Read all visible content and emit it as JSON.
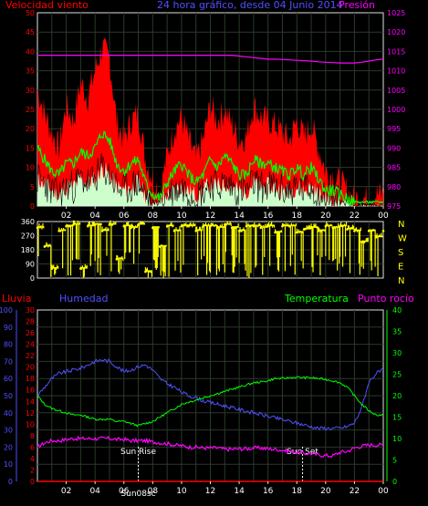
{
  "header": {
    "left_label": "Velocidad viento",
    "center_label": "24 hora gráfico, desde 04 Junio 2014",
    "right_label": "Presión"
  },
  "colors": {
    "red": "#ff0000",
    "blue": "#5050ff",
    "magenta": "#ff00ff",
    "green": "#00ff00",
    "yellow": "#ffff00",
    "white": "#ffffff",
    "grid": "#2a3a2a",
    "frame": "#e0e0e0"
  },
  "chart_data": [
    {
      "type": "area",
      "name": "wind",
      "x_ticks": [
        "02",
        "04",
        "06",
        "08",
        "10",
        "12",
        "14",
        "16",
        "18",
        "20",
        "22",
        "00"
      ],
      "y_left": {
        "label": "Velocidad viento",
        "ticks": [
          0,
          5,
          10,
          15,
          20,
          25,
          30,
          35,
          40,
          45,
          50
        ],
        "range": [
          0,
          50
        ]
      },
      "y_right": {
        "label": "Presión",
        "ticks": [
          975,
          980,
          985,
          990,
          995,
          1000,
          1005,
          1010,
          1015,
          1020,
          1025
        ],
        "range": [
          975,
          1025
        ]
      },
      "x_hours": [
        0,
        0.5,
        1,
        1.5,
        2,
        2.5,
        3,
        3.5,
        4,
        4.5,
        5,
        5.5,
        6,
        6.5,
        7,
        7.5,
        8,
        8.5,
        9,
        9.5,
        10,
        10.5,
        11,
        11.5,
        12,
        12.5,
        13,
        13.5,
        14,
        14.5,
        15,
        15.5,
        16,
        16.5,
        17,
        17.5,
        18,
        18.5,
        19,
        19.5,
        20,
        20.5,
        21,
        21.5,
        22,
        22.5,
        23,
        23.5,
        24
      ],
      "gust": [
        30,
        24,
        19,
        15,
        26,
        22,
        32,
        28,
        35,
        41,
        38,
        22,
        17,
        22,
        24,
        12,
        7,
        4,
        13,
        20,
        23,
        17,
        12,
        17,
        26,
        22,
        25,
        21,
        17,
        18,
        26,
        23,
        22,
        21,
        19,
        17,
        22,
        18,
        21,
        15,
        9,
        8,
        6,
        4,
        2,
        2,
        2,
        3,
        3
      ],
      "average": [
        15,
        12,
        9,
        8,
        11,
        11,
        14,
        13,
        15,
        19,
        17,
        11,
        9,
        11,
        12,
        6,
        3,
        2,
        6,
        9,
        11,
        8,
        6,
        8,
        12,
        10,
        13,
        11,
        8,
        8,
        12,
        11,
        11,
        10,
        9,
        8,
        10,
        8,
        10,
        7,
        4,
        4,
        3,
        2,
        1,
        1,
        1,
        1,
        1
      ],
      "lowest": [
        7,
        6,
        4,
        3,
        5,
        5,
        7,
        6,
        7,
        10,
        8,
        5,
        4,
        5,
        6,
        3,
        1,
        1,
        3,
        4,
        5,
        4,
        3,
        4,
        6,
        5,
        6,
        5,
        4,
        4,
        6,
        5,
        5,
        5,
        4,
        4,
        5,
        4,
        5,
        3,
        2,
        2,
        1,
        1,
        0,
        0,
        0,
        0,
        0
      ],
      "pressure": [
        1014,
        1014,
        1014,
        1014,
        1014,
        1014,
        1014,
        1014,
        1014,
        1014,
        1014,
        1014,
        1014,
        1014,
        1014,
        1014,
        1014,
        1014,
        1014,
        1014,
        1014,
        1014,
        1014,
        1014,
        1014,
        1014,
        1014,
        1014,
        1013.8,
        1013.6,
        1013.4,
        1013.2,
        1013,
        1013,
        1012.9,
        1012.8,
        1012.7,
        1012.6,
        1012.5,
        1012.3,
        1012.2,
        1012.1,
        1012,
        1012,
        1012,
        1012.2,
        1012.5,
        1012.8,
        1013
      ]
    },
    {
      "type": "scatter",
      "name": "wind_direction",
      "y_left": {
        "ticks": [
          0,
          90,
          180,
          270,
          360
        ],
        "range": [
          0,
          360
        ]
      },
      "y_right_labels": [
        "N",
        "W",
        "S",
        "E",
        "N"
      ],
      "x_hours": [
        0,
        0.5,
        1,
        1.5,
        2,
        2.5,
        3,
        3.5,
        4,
        4.5,
        5,
        5.5,
        6,
        6.5,
        7,
        7.5,
        8,
        8.5,
        9,
        9.5,
        10,
        10.5,
        11,
        11.5,
        12,
        12.5,
        13,
        13.5,
        14,
        14.5,
        15,
        15.5,
        16,
        16.5,
        17,
        17.5,
        18,
        18.5,
        19,
        19.5,
        20,
        20.5,
        21,
        21.5,
        22,
        22.5,
        23,
        23.5,
        24
      ],
      "direction": [
        320,
        200,
        60,
        300,
        330,
        340,
        60,
        330,
        340,
        300,
        340,
        120,
        330,
        320,
        340,
        40,
        320,
        200,
        330,
        300,
        330,
        330,
        300,
        330,
        330,
        320,
        340,
        320,
        300,
        330,
        330,
        320,
        330,
        290,
        330,
        330,
        290,
        310,
        320,
        300,
        330,
        320,
        330,
        310,
        300,
        230,
        300,
        260,
        300
      ]
    },
    {
      "type": "line",
      "name": "temp_humidity",
      "x_ticks": [
        "02",
        "04",
        "06",
        "08",
        "10",
        "12",
        "14",
        "16",
        "18",
        "20",
        "22",
        "00"
      ],
      "annotations": [
        "Sun Rise",
        "Sun Set",
        "Sun08sc"
      ],
      "sunrise_hour": 7.0,
      "sunset_hour": 18.4,
      "y_left1": {
        "label": "Lluvia",
        "ticks": [
          0,
          2,
          4,
          6,
          8,
          10,
          12,
          14,
          16,
          18,
          20,
          22,
          24,
          26,
          28,
          30
        ],
        "range": [
          0,
          30
        ]
      },
      "y_left2": {
        "label": "Humedad",
        "ticks": [
          0,
          10,
          20,
          30,
          40,
          50,
          60,
          70,
          80,
          90,
          100
        ],
        "range": [
          0,
          100
        ]
      },
      "y_right1": {
        "label": "Temperatura",
        "ticks": [
          0,
          5,
          10,
          15,
          20,
          25,
          30,
          35,
          40
        ],
        "range": [
          0,
          40
        ]
      },
      "y_right2": {
        "label": "Punto rocío"
      },
      "x_hours": [
        0,
        0.5,
        1,
        1.5,
        2,
        2.5,
        3,
        3.5,
        4,
        4.5,
        5,
        5.5,
        6,
        6.5,
        7,
        7.5,
        8,
        8.5,
        9,
        9.5,
        10,
        10.5,
        11,
        11.5,
        12,
        12.5,
        13,
        13.5,
        14,
        14.5,
        15,
        15.5,
        16,
        16.5,
        17,
        17.5,
        18,
        18.5,
        19,
        19.5,
        20,
        20.5,
        21,
        21.5,
        22,
        22.5,
        23,
        23.5,
        24
      ],
      "humidity": [
        50,
        55,
        60,
        63,
        64,
        65,
        66,
        68,
        70,
        71,
        70,
        67,
        64,
        65,
        67,
        68,
        65,
        60,
        57,
        55,
        52,
        50,
        49,
        47,
        46,
        45,
        44,
        43,
        42,
        41,
        40,
        39,
        38,
        37,
        36,
        35,
        34,
        33,
        32,
        31,
        31,
        31,
        31,
        32,
        34,
        43,
        58,
        63,
        65
      ],
      "temperature": [
        20,
        18,
        17,
        16.5,
        16,
        15.5,
        15.5,
        15,
        14.5,
        14.5,
        14.5,
        14,
        14,
        13.5,
        13,
        13.5,
        14,
        15,
        16,
        17,
        18,
        18.5,
        19,
        19.5,
        20,
        20.5,
        21,
        21.5,
        22,
        22.5,
        23,
        23.2,
        23.5,
        24,
        24,
        24.2,
        24.3,
        24.2,
        24.2,
        24,
        23.8,
        23.5,
        23,
        22,
        20,
        18,
        16.5,
        15.5,
        15.5
      ],
      "dew_point": [
        8,
        9,
        9.5,
        9.5,
        9.8,
        10,
        10,
        10,
        10,
        10,
        10,
        9.8,
        9.8,
        9.5,
        9.5,
        9.5,
        9.2,
        9,
        8.8,
        8.5,
        8.3,
        8,
        8,
        7.8,
        7.8,
        7.8,
        7.5,
        7.5,
        7.6,
        7.6,
        7.8,
        7.8,
        7.6,
        7.5,
        7.3,
        7,
        6.8,
        6.5,
        6.5,
        6.2,
        6,
        6,
        6.8,
        7,
        7.8,
        8.2,
        8.5,
        8.5,
        8.5
      ],
      "rain": [
        0,
        0,
        0,
        0,
        0,
        0,
        0,
        0,
        0,
        0,
        0,
        0,
        0,
        0,
        0,
        0,
        0,
        0,
        0,
        0,
        0,
        0,
        0,
        0,
        0,
        0,
        0,
        0,
        0,
        0,
        0,
        0,
        0,
        0,
        0,
        0,
        0,
        0,
        0,
        0,
        0,
        0,
        0,
        0,
        0,
        0,
        0,
        0,
        0
      ]
    }
  ]
}
